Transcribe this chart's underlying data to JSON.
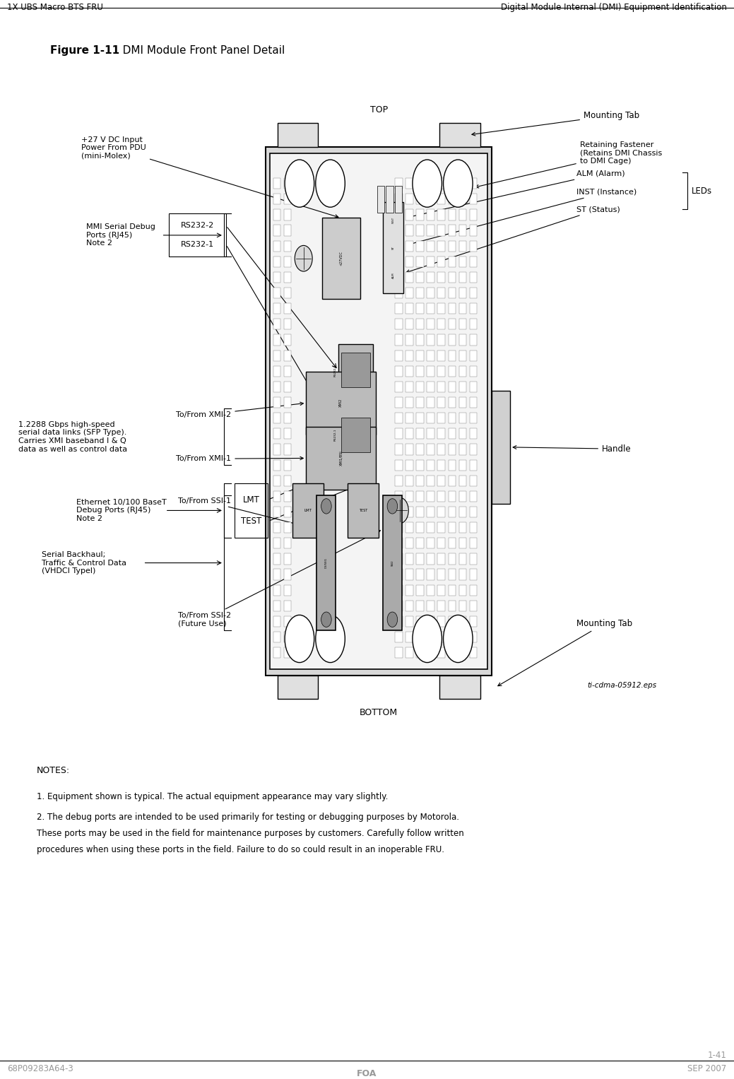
{
  "page_width": 10.39,
  "page_height": 15.27,
  "bg_color": "#ffffff",
  "header_left": "1X UBS Macro BTS FRU",
  "header_right": "Digital Module Internal (DMI) Equipment Identification",
  "footer_left": "68P09283A64-3",
  "footer_center": "FOA",
  "footer_right": "SEP 2007",
  "page_num": "1-41",
  "figure_title_bold": "Figure 1-11",
  "figure_title_normal": "   DMI Module Front Panel Detail",
  "eps_label": "ti-cdma-05912.eps",
  "notes_title": "NOTES:",
  "note1": "1. Equipment shown is typical. The actual equipment appearance may vary slightly.",
  "note2a": "2. The debug ports are intended to be used primarily for testing or debugging purposes by Motorola.",
  "note2b": "These ports may be used in the field for maintenance purposes by customers. Carefully follow written",
  "note2c": "procedures when using these ports in the field. Failure to do so could result in an inoperable FRU.",
  "top_label": "TOP",
  "bottom_label": "BOTTOM",
  "mounting_tab": "Mounting Tab",
  "retaining": "Retaining Fastener\n(Retains DMI Chassis\nto DMI Cage)",
  "power_label": "+27 V DC Input\nPower From PDU\n(mini-Molex)",
  "mmi_label": "MMI Serial Debug\nPorts (RJ45)\nNote 2",
  "rs232_2": "RS232-2",
  "rs232_1": "RS232-1",
  "alm_label": "ALM (Alarm)",
  "inst_label": "INST (Instance)",
  "st_label": "ST (Status)",
  "leds_label": "LEDs",
  "gbps_label": "1.2288 Gbps high-speed\nserial data links (SFP Type).\nCarries XMI baseband I & Q\ndata as well as control data",
  "xmi2_label": "To/From XMI-2",
  "xmi1_label": "To/From XMI-1",
  "handle_label": "Handle",
  "eth_label": "Ethernet 10/100 BaseT\nDebug Ports (RJ45)\nNote 2",
  "lmt_box_label": "LMT",
  "test_box_label": "TEST",
  "serial_label": "Serial Backhaul;\nTraffic & Control Data\n(VHDCI Typel)",
  "ssi1_label": "To/From SSI-1",
  "ssi2_label": "To/From SSI-2\n(Future Use)",
  "mounting_tab_bottom": "Mounting Tab"
}
